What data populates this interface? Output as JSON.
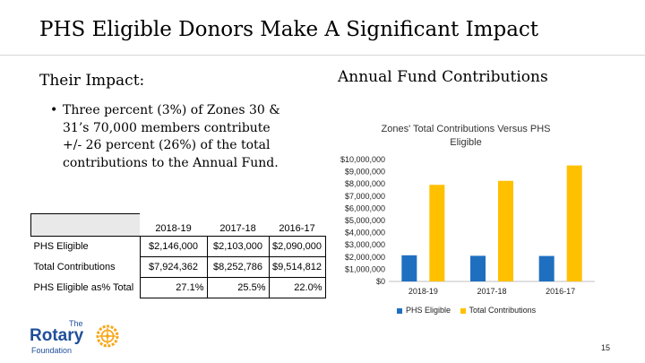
{
  "slide": {
    "title": "PHS Eligible Donors Make A Significant Impact",
    "impact_heading": "Their Impact:",
    "annual_heading": "Annual Fund Contributions",
    "bullet": "Three percent (3%) of Zones 30 & 31’s  70,000 members contribute +/- 26 percent (26%) of the total contributions to the Annual Fund.",
    "page_number": "15"
  },
  "logo": {
    "the": "The",
    "name": "Rotary",
    "sub": "Foundation"
  },
  "table": {
    "headers": [
      "",
      "2018-19",
      "2017-18",
      "2016-17"
    ],
    "rows": [
      [
        "PHS Eligible",
        "$2,146,000",
        "$2,103,000",
        "$2,090,000"
      ],
      [
        "Total Contributions",
        "$7,924,362",
        "$8,252,786",
        "$9,514,812"
      ],
      [
        "PHS Eligible as% Total",
        "27.1%",
        "25.5%",
        "22.0%"
      ]
    ]
  },
  "chart_data": {
    "type": "bar",
    "title": "Zones' Total Contributions Versus PHS Eligible",
    "categories": [
      "2018-19",
      "2017-18",
      "2016-17"
    ],
    "series": [
      {
        "name": "PHS Eligible",
        "values": [
          2146000,
          2103000,
          2090000
        ],
        "color": "#1f6fc1"
      },
      {
        "name": "Total Contributions",
        "values": [
          7924362,
          8252786,
          9514812
        ],
        "color": "#ffc000"
      }
    ],
    "ylim": [
      0,
      10000000
    ],
    "yticks": [
      0,
      1000000,
      2000000,
      3000000,
      4000000,
      5000000,
      6000000,
      7000000,
      8000000,
      9000000,
      10000000
    ],
    "ytick_labels": [
      "$0",
      "$1,000,000",
      "$2,000,000",
      "$3,000,000",
      "$4,000,000",
      "$5,000,000",
      "$6,000,000",
      "$7,000,000",
      "$8,000,000",
      "$9,000,000",
      "$10,000,000"
    ],
    "grid": false,
    "legend": "bottom",
    "xlabel": "",
    "ylabel": ""
  }
}
